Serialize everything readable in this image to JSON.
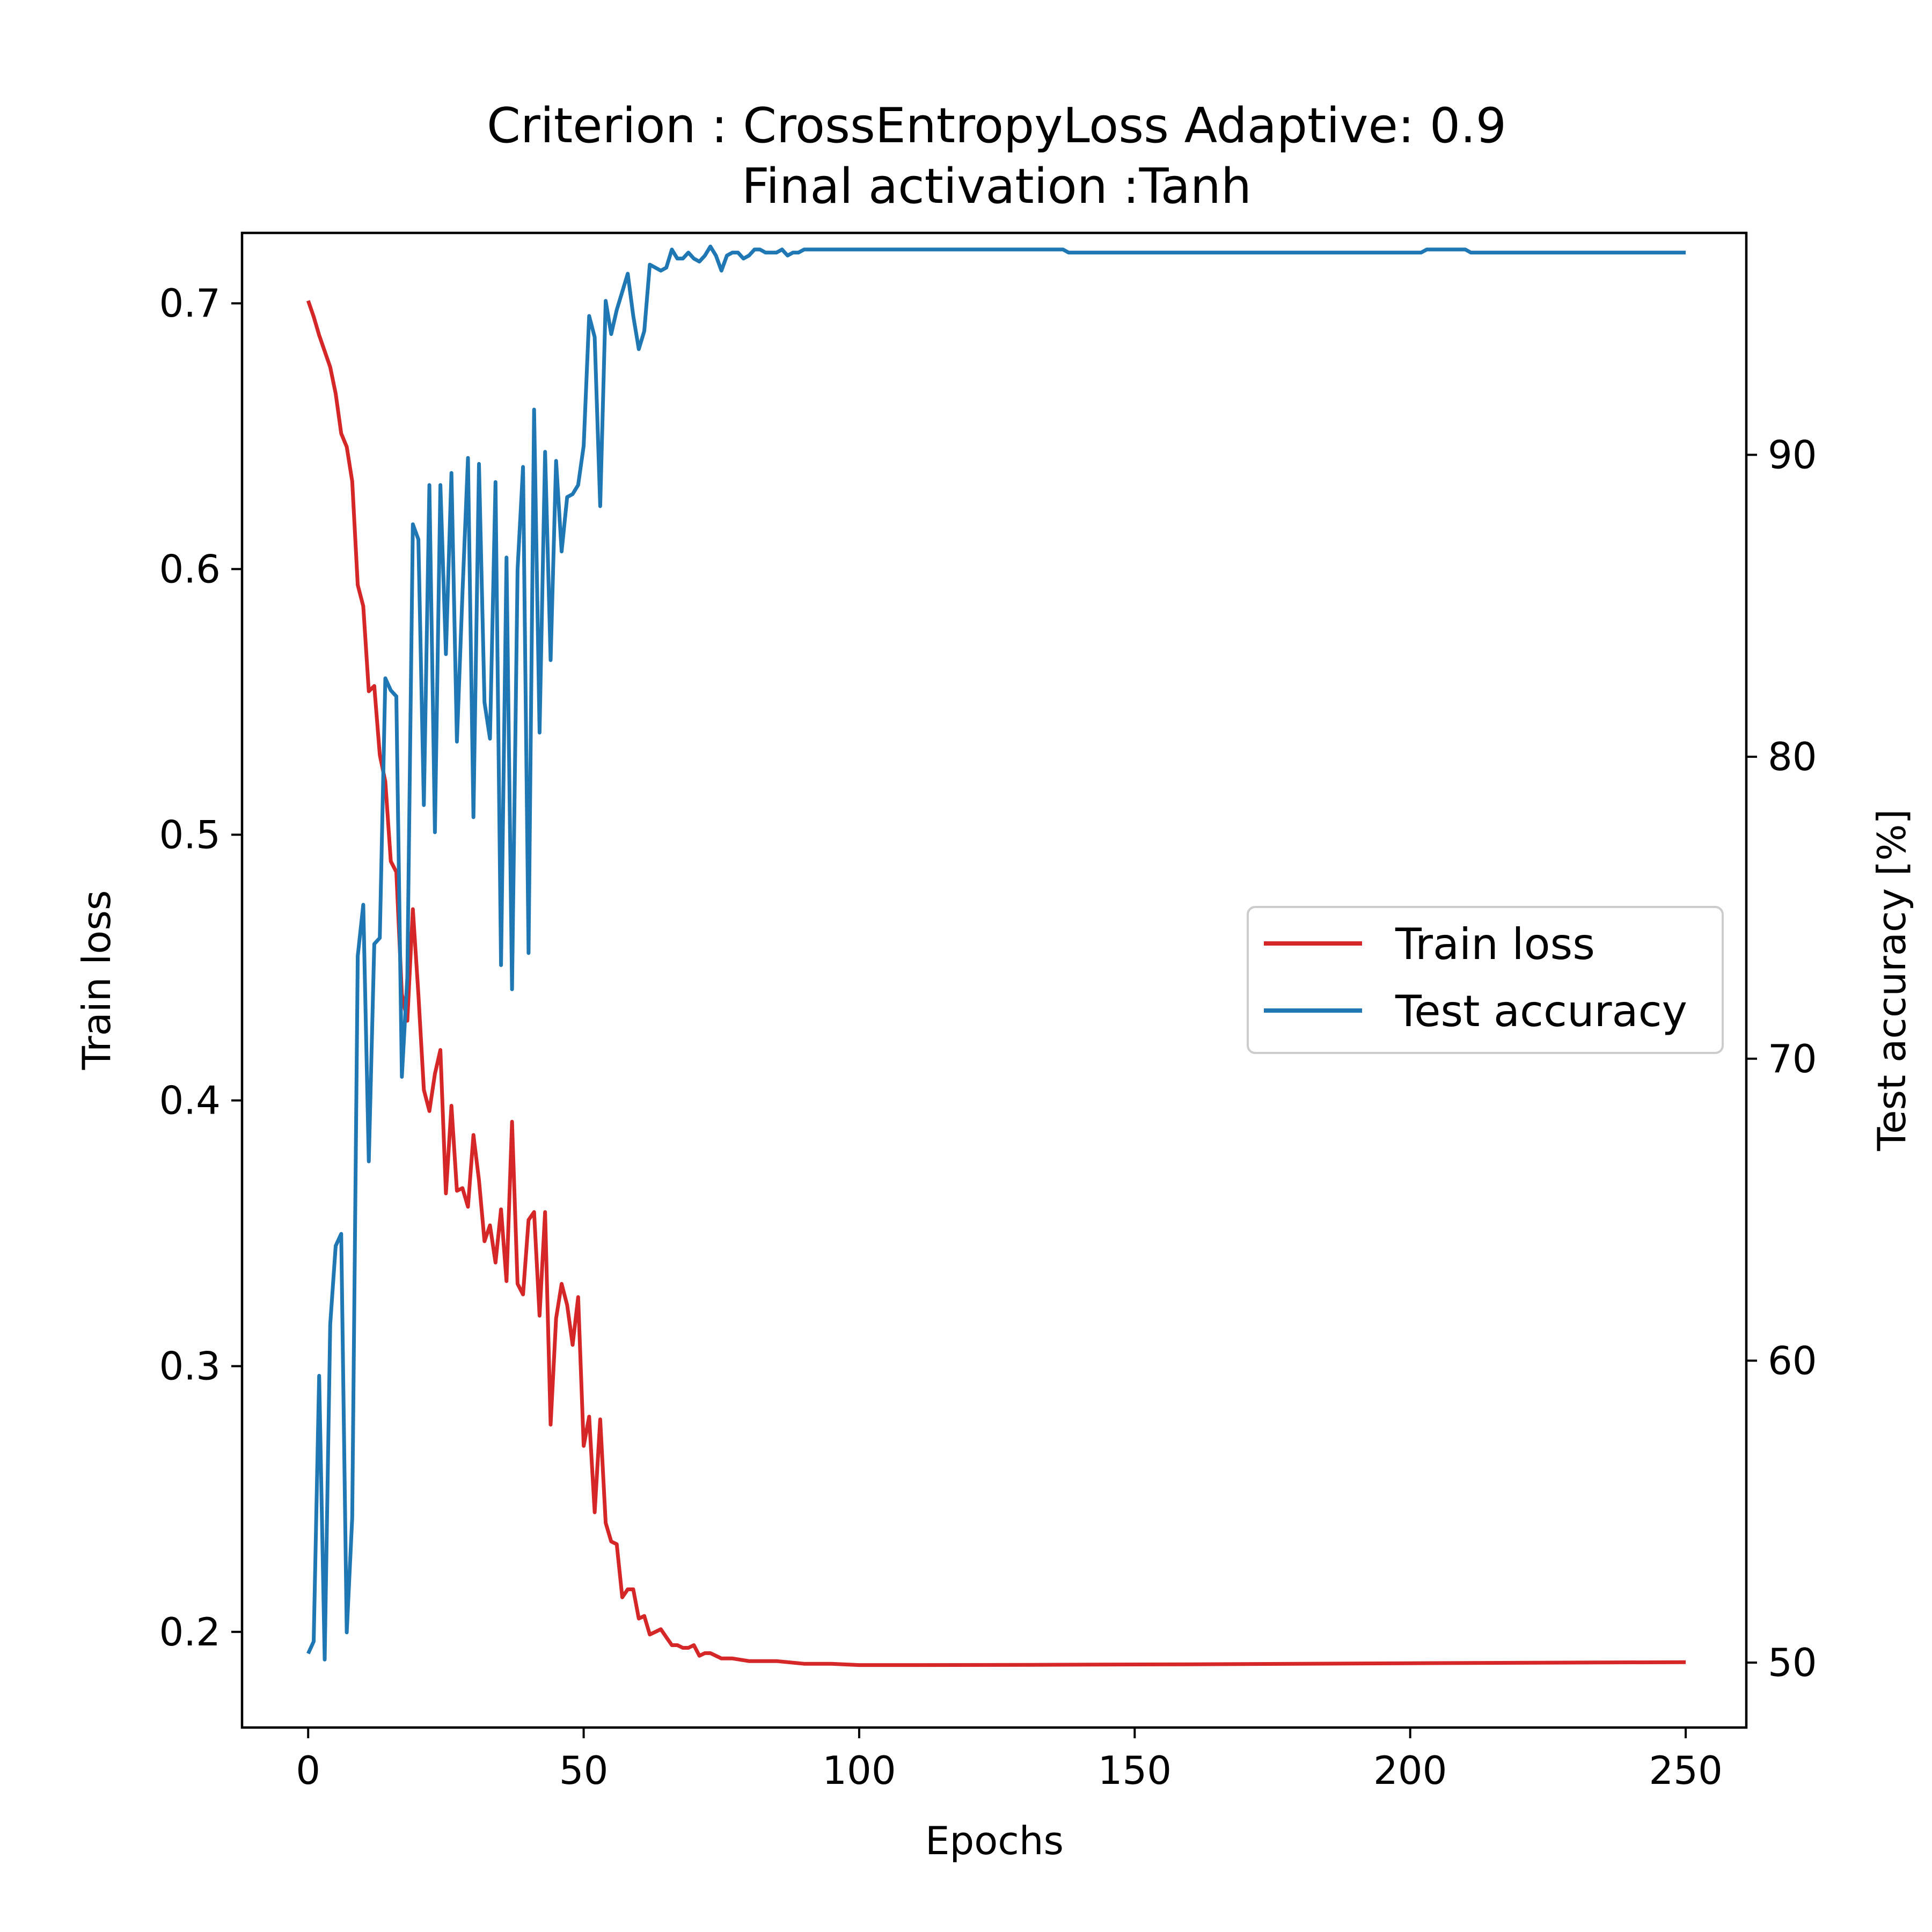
{
  "chart_data": {
    "type": "line",
    "title_line1": "Criterion : CrossEntropyLoss Adaptive: 0.9",
    "title_line2": "Final activation :Tanh",
    "xlabel": "Epochs",
    "ylabel_left": "Train loss",
    "ylabel_right": "Test accuracy [%]",
    "xlim": [
      -12,
      261
    ],
    "ylim_left": [
      0.164,
      0.7265
    ],
    "ylim_right": [
      47.85,
      97.35
    ],
    "xticks": [
      0,
      50,
      100,
      150,
      200,
      250
    ],
    "yticks_left": [
      0.2,
      0.3,
      0.4,
      0.5,
      0.6,
      0.7
    ],
    "yticks_left_labels": [
      "0.2",
      "0.3",
      "0.4",
      "0.5",
      "0.6",
      "0.7"
    ],
    "yticks_right": [
      50,
      60,
      70,
      80,
      90
    ],
    "legend_position": "center-right",
    "series": [
      {
        "name": "Train loss",
        "axis": "left",
        "color": "#d62728",
        "points": [
          [
            0,
            0.701
          ],
          [
            1,
            0.695
          ],
          [
            2,
            0.688
          ],
          [
            3,
            0.682
          ],
          [
            4,
            0.676
          ],
          [
            5,
            0.666
          ],
          [
            6,
            0.651
          ],
          [
            7,
            0.646
          ],
          [
            8,
            0.633
          ],
          [
            9,
            0.594
          ],
          [
            10,
            0.586
          ],
          [
            11,
            0.554
          ],
          [
            12,
            0.556
          ],
          [
            13,
            0.53
          ],
          [
            14,
            0.52
          ],
          [
            15,
            0.49
          ],
          [
            16,
            0.486
          ],
          [
            17,
            0.44
          ],
          [
            18,
            0.43
          ],
          [
            19,
            0.472
          ],
          [
            20,
            0.44
          ],
          [
            21,
            0.404
          ],
          [
            22,
            0.396
          ],
          [
            23,
            0.41
          ],
          [
            24,
            0.419
          ],
          [
            25,
            0.365
          ],
          [
            26,
            0.398
          ],
          [
            27,
            0.366
          ],
          [
            28,
            0.367
          ],
          [
            29,
            0.36
          ],
          [
            30,
            0.387
          ],
          [
            31,
            0.37
          ],
          [
            32,
            0.347
          ],
          [
            33,
            0.353
          ],
          [
            34,
            0.339
          ],
          [
            35,
            0.359
          ],
          [
            36,
            0.332
          ],
          [
            37,
            0.392
          ],
          [
            38,
            0.331
          ],
          [
            39,
            0.327
          ],
          [
            40,
            0.355
          ],
          [
            41,
            0.358
          ],
          [
            42,
            0.319
          ],
          [
            43,
            0.358
          ],
          [
            44,
            0.278
          ],
          [
            45,
            0.318
          ],
          [
            46,
            0.331
          ],
          [
            47,
            0.323
          ],
          [
            48,
            0.308
          ],
          [
            49,
            0.326
          ],
          [
            50,
            0.27
          ],
          [
            51,
            0.281
          ],
          [
            52,
            0.245
          ],
          [
            53,
            0.28
          ],
          [
            54,
            0.241
          ],
          [
            55,
            0.234
          ],
          [
            56,
            0.233
          ],
          [
            57,
            0.213
          ],
          [
            58,
            0.216
          ],
          [
            59,
            0.216
          ],
          [
            60,
            0.205
          ],
          [
            61,
            0.206
          ],
          [
            62,
            0.199
          ],
          [
            63,
            0.2
          ],
          [
            64,
            0.201
          ],
          [
            65,
            0.198
          ],
          [
            66,
            0.195
          ],
          [
            67,
            0.195
          ],
          [
            68,
            0.194
          ],
          [
            69,
            0.194
          ],
          [
            70,
            0.195
          ],
          [
            71,
            0.191
          ],
          [
            72,
            0.192
          ],
          [
            73,
            0.192
          ],
          [
            74,
            0.191
          ],
          [
            75,
            0.19
          ],
          [
            76,
            0.19
          ],
          [
            77,
            0.19
          ],
          [
            80,
            0.189
          ],
          [
            85,
            0.189
          ],
          [
            90,
            0.188
          ],
          [
            95,
            0.188
          ],
          [
            100,
            0.1875
          ],
          [
            110,
            0.1875
          ],
          [
            130,
            0.1876
          ],
          [
            160,
            0.1878
          ],
          [
            200,
            0.1882
          ],
          [
            250,
            0.1886
          ]
        ]
      },
      {
        "name": "Test accuracy",
        "axis": "right",
        "color": "#1f77b4",
        "points": [
          [
            0,
            50.3
          ],
          [
            1,
            50.7
          ],
          [
            2,
            59.5
          ],
          [
            3,
            50.1
          ],
          [
            4,
            61.2
          ],
          [
            5,
            63.8
          ],
          [
            6,
            64.2
          ],
          [
            7,
            51.0
          ],
          [
            8,
            54.8
          ],
          [
            9,
            73.4
          ],
          [
            10,
            75.1
          ],
          [
            11,
            66.6
          ],
          [
            12,
            73.8
          ],
          [
            13,
            74.0
          ],
          [
            14,
            82.6
          ],
          [
            15,
            82.2
          ],
          [
            16,
            82.0
          ],
          [
            17,
            69.4
          ],
          [
            18,
            72.7
          ],
          [
            19,
            87.7
          ],
          [
            20,
            87.2
          ],
          [
            21,
            78.4
          ],
          [
            22,
            89.0
          ],
          [
            23,
            77.5
          ],
          [
            24,
            89.0
          ],
          [
            25,
            83.4
          ],
          [
            26,
            89.4
          ],
          [
            27,
            80.5
          ],
          [
            28,
            85.4
          ],
          [
            29,
            89.9
          ],
          [
            30,
            78.0
          ],
          [
            31,
            89.7
          ],
          [
            32,
            81.8
          ],
          [
            33,
            80.6
          ],
          [
            34,
            89.1
          ],
          [
            35,
            73.1
          ],
          [
            36,
            86.6
          ],
          [
            37,
            72.3
          ],
          [
            38,
            86.2
          ],
          [
            39,
            89.6
          ],
          [
            40,
            73.5
          ],
          [
            41,
            91.5
          ],
          [
            42,
            80.8
          ],
          [
            43,
            90.1
          ],
          [
            44,
            83.2
          ],
          [
            45,
            89.8
          ],
          [
            46,
            86.8
          ],
          [
            47,
            88.6
          ],
          [
            48,
            88.7
          ],
          [
            49,
            89.0
          ],
          [
            50,
            90.3
          ],
          [
            51,
            94.6
          ],
          [
            52,
            93.9
          ],
          [
            53,
            88.3
          ],
          [
            54,
            95.1
          ],
          [
            55,
            94.0
          ],
          [
            56,
            94.8
          ],
          [
            57,
            95.4
          ],
          [
            58,
            96.0
          ],
          [
            59,
            94.6
          ],
          [
            60,
            93.5
          ],
          [
            61,
            94.1
          ],
          [
            62,
            96.3
          ],
          [
            63,
            96.2
          ],
          [
            64,
            96.1
          ],
          [
            65,
            96.2
          ],
          [
            66,
            96.8
          ],
          [
            67,
            96.5
          ],
          [
            68,
            96.5
          ],
          [
            69,
            96.7
          ],
          [
            70,
            96.5
          ],
          [
            71,
            96.4
          ],
          [
            72,
            96.6
          ],
          [
            73,
            96.9
          ],
          [
            74,
            96.6
          ],
          [
            75,
            96.1
          ],
          [
            76,
            96.6
          ],
          [
            77,
            96.7
          ],
          [
            78,
            96.7
          ],
          [
            79,
            96.5
          ],
          [
            80,
            96.6
          ],
          [
            81,
            96.8
          ],
          [
            82,
            96.8
          ],
          [
            83,
            96.7
          ],
          [
            84,
            96.7
          ],
          [
            85,
            96.7
          ],
          [
            86,
            96.8
          ],
          [
            87,
            96.6
          ],
          [
            88,
            96.7
          ],
          [
            89,
            96.7
          ],
          [
            90,
            96.8
          ],
          [
            100,
            96.8
          ],
          [
            137,
            96.8
          ],
          [
            138,
            96.7
          ],
          [
            150,
            96.7
          ],
          [
            202,
            96.7
          ],
          [
            203,
            96.8
          ],
          [
            210,
            96.8
          ],
          [
            211,
            96.7
          ],
          [
            250,
            96.7
          ]
        ]
      }
    ]
  }
}
